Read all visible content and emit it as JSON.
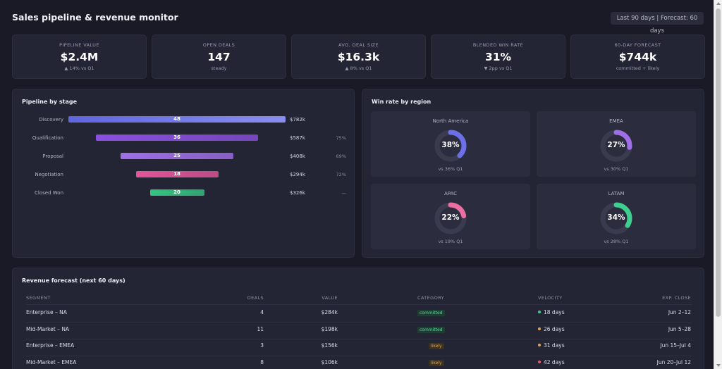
{
  "header": {
    "title": "Sales pipeline & revenue monitor",
    "range": "Last 90 days | Forecast: 60 days"
  },
  "kpis": [
    {
      "label": "PIPELINE VALUE",
      "value": "$2.4M",
      "delta": "▲ 14% vs Q1",
      "trend": "up"
    },
    {
      "label": "OPEN DEALS",
      "value": "147",
      "delta": "steady",
      "trend": "flat"
    },
    {
      "label": "AVG. DEAL SIZE",
      "value": "$16.3k",
      "delta": "▲ 8% vs Q1",
      "trend": "up"
    },
    {
      "label": "BLENDED WIN RATE",
      "value": "31%",
      "delta": "▼ 2pp vs Q1",
      "trend": "down"
    },
    {
      "label": "60-DAY FORECAST",
      "value": "$744k",
      "delta": "committed + likely",
      "trend": "flat"
    }
  ],
  "pipeline": {
    "title": "Pipeline by stage",
    "stages": [
      {
        "name": "Discovery",
        "deals": 48,
        "value": "$782k",
        "conversion": "",
        "color": "#6b70e8"
      },
      {
        "name": "Qualification",
        "deals": 36,
        "value": "$587k",
        "conversion": "75%",
        "color": "#8a4fe0"
      },
      {
        "name": "Proposal",
        "deals": 25,
        "value": "$408k",
        "conversion": "69%",
        "color": "#a06ee6"
      },
      {
        "name": "Negotiation",
        "deals": 18,
        "value": "$294k",
        "conversion": "72%",
        "color": "#e2559a"
      },
      {
        "name": "Closed Won",
        "deals": 20,
        "value": "$326k",
        "conversion": "—",
        "color": "#34c47f"
      }
    ]
  },
  "win_rate": {
    "title": "Win rate by region",
    "regions": [
      {
        "name": "North America",
        "rate": 38,
        "label": "38%",
        "note": "vs 36% Q1",
        "color": "#6b70e8"
      },
      {
        "name": "EMEA",
        "rate": 27,
        "label": "27%",
        "note": "vs 30% Q1",
        "color": "#a06ee6"
      },
      {
        "name": "APAC",
        "rate": 22,
        "label": "22%",
        "note": "vs 19% Q1",
        "color": "#ec6fa3"
      },
      {
        "name": "LATAM",
        "rate": 34,
        "label": "34%",
        "note": "vs 28% Q1",
        "color": "#3ecf8e"
      }
    ]
  },
  "forecast": {
    "title": "Revenue forecast (next 60 days)",
    "columns": [
      "SEGMENT",
      "DEALS",
      "VALUE",
      "CATEGORY",
      "VELOCITY",
      "EXP. CLOSE"
    ],
    "rows": [
      {
        "segment": "Enterprise – NA",
        "deals": "4",
        "value": "$284k",
        "category": "committed",
        "velocity": "18 days",
        "velocity_color": "#3ecf8e",
        "close": "Jun 2–12"
      },
      {
        "segment": "Mid-Market – NA",
        "deals": "11",
        "value": "$198k",
        "category": "committed",
        "velocity": "26 days",
        "velocity_color": "#e0a35a",
        "close": "Jun 5–28"
      },
      {
        "segment": "Enterprise – EMEA",
        "deals": "3",
        "value": "$156k",
        "category": "likely",
        "velocity": "31 days",
        "velocity_color": "#e0a35a",
        "close": "Jun 15–Jul 4"
      },
      {
        "segment": "Mid-Market – EMEA",
        "deals": "8",
        "value": "$106k",
        "category": "likely",
        "velocity": "42 days",
        "velocity_color": "#f0556e",
        "close": "Jun 20–Jul 12"
      }
    ]
  }
}
